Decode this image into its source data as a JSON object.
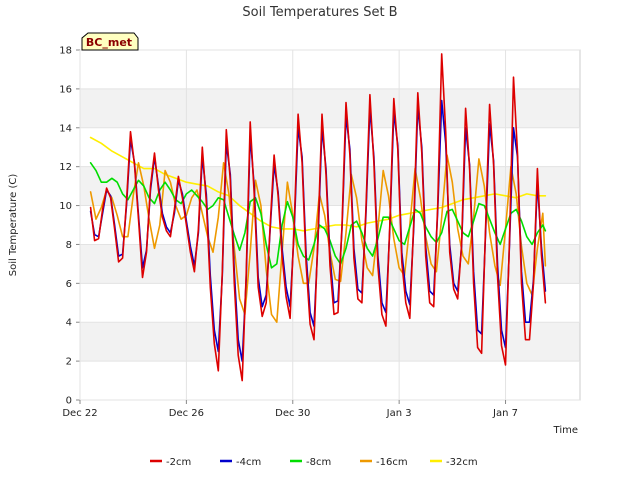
{
  "chart_data": {
    "type": "line",
    "title": "Soil Temperatures Set B",
    "xlabel": "Time",
    "ylabel": "Soil Temperature (C)",
    "badge": "BC_met",
    "xlim": [
      0,
      18.8
    ],
    "ylim": [
      0,
      18
    ],
    "x_ticks": [
      {
        "value": 0,
        "label": "Dec 22"
      },
      {
        "value": 4,
        "label": "Dec 26"
      },
      {
        "value": 8,
        "label": "Dec 30"
      },
      {
        "value": 12,
        "label": "Jan 3"
      },
      {
        "value": 16,
        "label": "Jan 7"
      }
    ],
    "y_ticks": [
      0,
      2,
      4,
      6,
      8,
      10,
      12,
      14,
      16,
      18
    ],
    "grid_bands": true,
    "legend_position": "bottom-center",
    "series": [
      {
        "name": "-2cm",
        "color": "#dd0000",
        "x": [
          0.4,
          0.55,
          0.7,
          0.85,
          1.0,
          1.15,
          1.3,
          1.45,
          1.6,
          1.75,
          1.9,
          2.05,
          2.2,
          2.35,
          2.5,
          2.65,
          2.8,
          2.95,
          3.1,
          3.25,
          3.4,
          3.55,
          3.7,
          3.85,
          4.0,
          4.15,
          4.3,
          4.45,
          4.6,
          4.75,
          4.9,
          5.05,
          5.2,
          5.35,
          5.5,
          5.65,
          5.8,
          5.95,
          6.1,
          6.25,
          6.4,
          6.55,
          6.7,
          6.85,
          7.0,
          7.15,
          7.3,
          7.45,
          7.6,
          7.75,
          7.9,
          8.05,
          8.2,
          8.35,
          8.5,
          8.65,
          8.8,
          8.95,
          9.1,
          9.25,
          9.4,
          9.55,
          9.7,
          9.85,
          10.0,
          10.15,
          10.3,
          10.45,
          10.6,
          10.75,
          10.9,
          11.05,
          11.2,
          11.35,
          11.5,
          11.65,
          11.8,
          11.95,
          12.1,
          12.25,
          12.4,
          12.55,
          12.7,
          12.85,
          13.0,
          13.15,
          13.3,
          13.45,
          13.6,
          13.75,
          13.9,
          14.05,
          14.2,
          14.35,
          14.5,
          14.65,
          14.8,
          14.95,
          15.1,
          15.25,
          15.4,
          15.55,
          15.7,
          15.85,
          16.0,
          16.15,
          16.3,
          16.45,
          16.6,
          16.75,
          16.9,
          17.05,
          17.2,
          17.35,
          17.5
        ],
        "y": [
          9.9,
          8.2,
          8.3,
          9.8,
          10.9,
          10.4,
          8.8,
          7.1,
          7.3,
          10.2,
          13.8,
          12.1,
          9.3,
          6.3,
          7.6,
          11.0,
          12.7,
          10.8,
          9.4,
          8.7,
          8.4,
          9.8,
          11.5,
          10.4,
          9.0,
          7.6,
          6.6,
          8.8,
          13.0,
          10.2,
          5.8,
          2.9,
          1.5,
          6.6,
          13.9,
          11.3,
          6.0,
          2.3,
          1.0,
          6.5,
          14.3,
          10.6,
          5.8,
          4.3,
          5.0,
          9.0,
          12.6,
          10.5,
          7.4,
          5.3,
          4.2,
          8.9,
          14.7,
          12.2,
          7.0,
          3.9,
          3.1,
          8.5,
          14.7,
          11.6,
          6.9,
          4.4,
          4.5,
          9.0,
          15.3,
          12.6,
          7.3,
          5.2,
          5.0,
          9.8,
          15.7,
          12.2,
          6.9,
          4.4,
          3.8,
          9.0,
          15.5,
          12.9,
          7.1,
          5.0,
          4.2,
          9.2,
          15.8,
          12.7,
          7.4,
          5.0,
          4.8,
          10.0,
          17.8,
          13.8,
          7.6,
          5.7,
          5.2,
          8.0,
          15.0,
          11.9,
          6.0,
          2.7,
          2.4,
          8.9,
          15.2,
          12.1,
          6.3,
          2.8,
          1.8,
          8.2,
          16.6,
          12.7,
          6.0,
          3.1,
          3.1,
          6.0,
          11.9,
          7.5,
          5.0
        ]
      },
      {
        "name": "-4cm",
        "color": "#0000cc",
        "x": [
          0.4,
          0.55,
          0.7,
          0.85,
          1.0,
          1.15,
          1.3,
          1.45,
          1.6,
          1.75,
          1.9,
          2.05,
          2.2,
          2.35,
          2.5,
          2.65,
          2.8,
          2.95,
          3.1,
          3.25,
          3.4,
          3.55,
          3.7,
          3.85,
          4.0,
          4.15,
          4.3,
          4.45,
          4.6,
          4.75,
          4.9,
          5.05,
          5.2,
          5.35,
          5.5,
          5.65,
          5.8,
          5.95,
          6.1,
          6.25,
          6.4,
          6.55,
          6.7,
          6.85,
          7.0,
          7.15,
          7.3,
          7.45,
          7.6,
          7.75,
          7.9,
          8.05,
          8.2,
          8.35,
          8.5,
          8.65,
          8.8,
          8.95,
          9.1,
          9.25,
          9.4,
          9.55,
          9.7,
          9.85,
          10.0,
          10.15,
          10.3,
          10.45,
          10.6,
          10.75,
          10.9,
          11.05,
          11.2,
          11.35,
          11.5,
          11.65,
          11.8,
          11.95,
          12.1,
          12.25,
          12.4,
          12.55,
          12.7,
          12.85,
          13.0,
          13.15,
          13.3,
          13.45,
          13.6,
          13.75,
          13.9,
          14.05,
          14.2,
          14.35,
          14.5,
          14.65,
          14.8,
          14.95,
          15.1,
          15.25,
          15.4,
          15.55,
          15.7,
          15.85,
          16.0,
          16.15,
          16.3,
          16.45,
          16.6,
          16.75,
          16.9,
          17.05,
          17.2,
          17.35,
          17.5
        ],
        "y": [
          9.7,
          8.5,
          8.4,
          9.6,
          10.8,
          10.5,
          9.0,
          7.4,
          7.5,
          10.0,
          13.4,
          12.2,
          9.5,
          6.8,
          7.7,
          10.8,
          12.5,
          11.0,
          9.6,
          8.9,
          8.6,
          9.6,
          11.3,
          10.6,
          9.2,
          7.9,
          6.9,
          8.6,
          12.5,
          10.6,
          6.4,
          3.6,
          2.5,
          6.4,
          13.2,
          11.6,
          6.6,
          3.1,
          2.0,
          6.2,
          13.6,
          11.0,
          6.3,
          4.8,
          5.4,
          8.8,
          12.1,
          10.7,
          7.8,
          5.8,
          4.8,
          8.6,
          14.0,
          12.5,
          7.5,
          4.5,
          3.8,
          8.2,
          14.0,
          11.9,
          7.4,
          5.0,
          5.1,
          8.8,
          14.6,
          12.9,
          7.8,
          5.7,
          5.5,
          9.5,
          15.0,
          12.5,
          7.4,
          5.0,
          4.5,
          8.8,
          14.8,
          13.1,
          7.6,
          5.6,
          4.9,
          8.9,
          15.1,
          13.0,
          7.9,
          5.6,
          5.4,
          9.7,
          15.4,
          13.2,
          8.0,
          6.0,
          5.6,
          7.9,
          14.0,
          12.1,
          6.6,
          3.6,
          3.4,
          8.6,
          14.2,
          12.3,
          6.9,
          3.6,
          2.7,
          8.0,
          14.0,
          12.5,
          6.6,
          4.0,
          4.0,
          6.2,
          11.2,
          7.9,
          5.6
        ]
      },
      {
        "name": "-8cm",
        "color": "#00dd00",
        "x": [
          0.4,
          0.6,
          0.8,
          1.0,
          1.2,
          1.4,
          1.6,
          1.8,
          2.0,
          2.2,
          2.4,
          2.6,
          2.8,
          3.0,
          3.2,
          3.4,
          3.6,
          3.8,
          4.0,
          4.2,
          4.4,
          4.6,
          4.8,
          5.0,
          5.2,
          5.4,
          5.6,
          5.8,
          6.0,
          6.2,
          6.4,
          6.6,
          6.8,
          7.0,
          7.2,
          7.4,
          7.6,
          7.8,
          8.0,
          8.2,
          8.4,
          8.6,
          8.8,
          9.0,
          9.2,
          9.4,
          9.6,
          9.8,
          10.0,
          10.2,
          10.4,
          10.6,
          10.8,
          11.0,
          11.2,
          11.4,
          11.6,
          11.8,
          12.0,
          12.2,
          12.4,
          12.6,
          12.8,
          13.0,
          13.2,
          13.4,
          13.6,
          13.8,
          14.0,
          14.2,
          14.4,
          14.6,
          14.8,
          15.0,
          15.2,
          15.4,
          15.6,
          15.8,
          16.0,
          16.2,
          16.4,
          16.6,
          16.8,
          17.0,
          17.2,
          17.4,
          17.5
        ],
        "y": [
          12.2,
          11.8,
          11.2,
          11.2,
          11.4,
          11.2,
          10.6,
          10.3,
          10.8,
          11.3,
          11.0,
          10.4,
          10.1,
          10.8,
          11.2,
          10.8,
          10.3,
          10.1,
          10.6,
          10.8,
          10.5,
          10.2,
          9.8,
          10.0,
          10.4,
          10.3,
          9.4,
          8.5,
          7.7,
          8.6,
          10.2,
          10.4,
          9.6,
          8.0,
          6.8,
          7.0,
          9.0,
          10.2,
          9.4,
          8.0,
          7.4,
          7.2,
          8.0,
          9.0,
          8.8,
          8.2,
          7.4,
          7.0,
          7.8,
          9.0,
          9.2,
          8.6,
          7.8,
          7.4,
          8.3,
          9.4,
          9.4,
          8.8,
          8.2,
          8.0,
          8.9,
          9.8,
          9.6,
          8.9,
          8.4,
          8.1,
          8.6,
          9.7,
          9.8,
          9.2,
          8.6,
          8.4,
          9.2,
          10.1,
          10.0,
          9.3,
          8.6,
          8.0,
          8.8,
          9.6,
          9.8,
          9.2,
          8.4,
          8.0,
          8.6,
          9.0,
          8.7
        ]
      },
      {
        "name": "-16cm",
        "color": "#ee9900",
        "x": [
          0.4,
          0.6,
          0.8,
          1.0,
          1.2,
          1.4,
          1.6,
          1.8,
          2.0,
          2.2,
          2.4,
          2.6,
          2.8,
          3.0,
          3.2,
          3.4,
          3.6,
          3.8,
          4.0,
          4.2,
          4.4,
          4.6,
          4.8,
          5.0,
          5.2,
          5.4,
          5.6,
          5.8,
          6.0,
          6.2,
          6.4,
          6.6,
          6.8,
          7.0,
          7.2,
          7.4,
          7.6,
          7.8,
          8.0,
          8.2,
          8.4,
          8.6,
          8.8,
          9.0,
          9.2,
          9.4,
          9.6,
          9.8,
          10.0,
          10.2,
          10.4,
          10.6,
          10.8,
          11.0,
          11.2,
          11.4,
          11.6,
          11.8,
          12.0,
          12.2,
          12.4,
          12.6,
          12.8,
          13.0,
          13.2,
          13.4,
          13.6,
          13.8,
          14.0,
          14.2,
          14.4,
          14.6,
          14.8,
          15.0,
          15.2,
          15.4,
          15.6,
          15.8,
          16.0,
          16.2,
          16.4,
          16.6,
          16.8,
          17.0,
          17.2,
          17.4,
          17.5
        ],
        "y": [
          10.7,
          9.3,
          9.9,
          10.8,
          10.4,
          9.5,
          8.4,
          8.4,
          10.5,
          12.2,
          11.0,
          9.3,
          7.8,
          9.0,
          11.8,
          11.2,
          10.0,
          9.3,
          9.5,
          10.4,
          10.8,
          9.6,
          8.4,
          7.6,
          9.4,
          12.2,
          10.6,
          7.8,
          5.2,
          4.4,
          7.6,
          11.3,
          10.0,
          6.7,
          4.4,
          4.0,
          7.6,
          11.2,
          9.5,
          7.4,
          6.0,
          6.0,
          7.8,
          10.6,
          9.5,
          7.6,
          6.2,
          6.1,
          8.6,
          11.6,
          10.4,
          8.2,
          6.8,
          6.4,
          8.8,
          11.8,
          10.5,
          8.3,
          6.8,
          6.4,
          9.0,
          11.9,
          10.4,
          8.4,
          7.0,
          6.6,
          9.4,
          12.6,
          11.2,
          8.8,
          7.4,
          7.0,
          9.4,
          12.4,
          11.0,
          8.6,
          6.9,
          5.9,
          8.8,
          12.0,
          10.6,
          7.9,
          6.0,
          5.4,
          7.8,
          9.6,
          6.9
        ]
      },
      {
        "name": "-32cm",
        "color": "#ffee00",
        "x": [
          0.4,
          0.8,
          1.2,
          1.6,
          2.0,
          2.4,
          2.8,
          3.2,
          3.6,
          4.0,
          4.4,
          4.8,
          5.2,
          5.6,
          6.0,
          6.4,
          6.8,
          7.2,
          7.6,
          8.0,
          8.4,
          8.8,
          9.2,
          9.6,
          10.0,
          10.4,
          10.8,
          11.2,
          11.6,
          12.0,
          12.4,
          12.8,
          13.2,
          13.6,
          14.0,
          14.4,
          14.8,
          15.2,
          15.6,
          16.0,
          16.4,
          16.8,
          17.2,
          17.5
        ],
        "y": [
          13.5,
          13.2,
          12.8,
          12.5,
          12.2,
          11.9,
          11.9,
          11.6,
          11.4,
          11.2,
          11.1,
          11.0,
          10.7,
          10.5,
          10.0,
          9.6,
          9.2,
          8.9,
          8.8,
          8.8,
          8.7,
          8.8,
          8.9,
          9.0,
          9.0,
          8.9,
          9.1,
          9.2,
          9.3,
          9.5,
          9.6,
          9.7,
          9.8,
          9.9,
          10.1,
          10.3,
          10.4,
          10.5,
          10.6,
          10.5,
          10.4,
          10.6,
          10.5,
          10.5
        ]
      }
    ]
  }
}
